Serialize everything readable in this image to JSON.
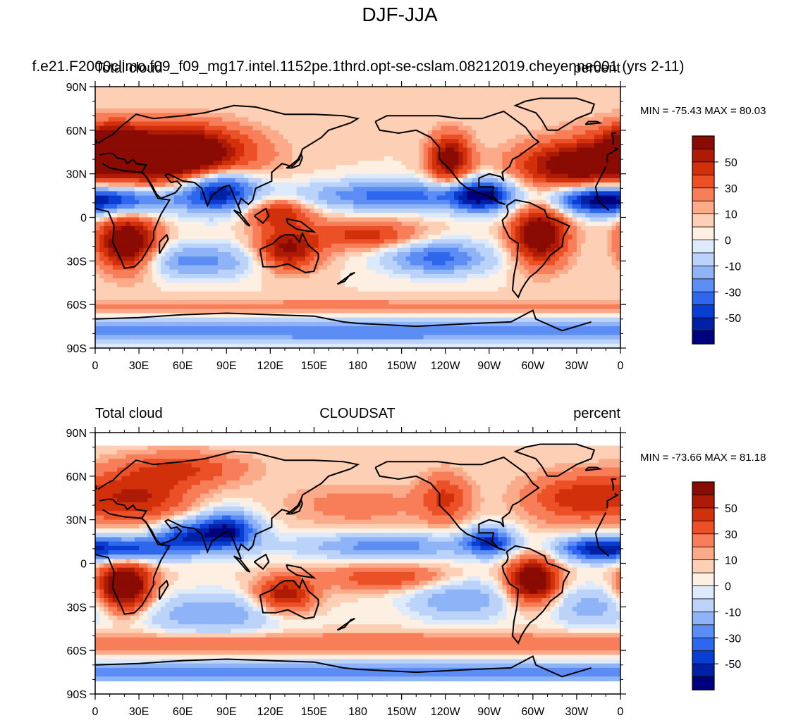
{
  "figure_title": "DJF-JJA",
  "colors": {
    "levels": [
      "#00007f",
      "#0020a6",
      "#0a3dd1",
      "#2f66ee",
      "#5c8df4",
      "#8eb3f7",
      "#bcd3f9",
      "#ddeafb",
      "#fdefe2",
      "#fdd0b5",
      "#fbab8a",
      "#f77e58",
      "#ec5026",
      "#d1300b",
      "#ad1a05",
      "#8a0b03"
    ],
    "ocean_neutral": "#ddeafb",
    "coast": "#000000"
  },
  "chart_data": [
    {
      "type": "heatmap",
      "left_title": "Total cloud",
      "center_title": "f.e21.F2000climo.f09_f09_mg17.intel.1152pe.1thrd.opt-se-cslam.08212019.cheyenne001 (yrs 2-11)",
      "right_title": "percent",
      "stats": "MIN = -75.43 MAX =  80.03",
      "min": -75.43,
      "max": 80.03,
      "x_ticks": [
        "0",
        "30E",
        "60E",
        "90E",
        "120E",
        "150E",
        "180",
        "150W",
        "120W",
        "90W",
        "60W",
        "30W",
        "0"
      ],
      "y_ticks": [
        "90N",
        "60N",
        "30N",
        "0",
        "30S",
        "60S",
        "90S"
      ],
      "xlim": [
        0,
        360
      ],
      "ylim": [
        -90,
        90
      ],
      "colorbar_levels": [
        -70,
        -60,
        -50,
        -40,
        -30,
        -20,
        -10,
        -5,
        0,
        5,
        10,
        20,
        30,
        40,
        50,
        60
      ],
      "colorbar_labels": [
        "50",
        "30",
        "10",
        "0",
        "-10",
        "-30",
        "-50"
      ],
      "data_lat_range": [
        -90,
        90
      ],
      "anomalies": [
        {
          "name": "eurasia-north",
          "lon": 30,
          "lat": 42,
          "value": 60,
          "lon_width": 45,
          "lat_width": 14
        },
        {
          "name": "asia-west",
          "lon": 62,
          "lat": 45,
          "value": 45,
          "lon_width": 28,
          "lat_width": 12
        },
        {
          "name": "south-africa",
          "lon": 22,
          "lat": -18,
          "value": 75,
          "lon_width": 14,
          "lat_width": 13
        },
        {
          "name": "north-america-west",
          "lon": 243,
          "lat": 40,
          "value": 60,
          "lon_width": 10,
          "lat_width": 12
        },
        {
          "name": "north-atlantic",
          "lon": 325,
          "lat": 35,
          "value": 50,
          "lon_width": 25,
          "lat_width": 10
        },
        {
          "name": "brazil",
          "lon": 305,
          "lat": -12,
          "value": 70,
          "lon_width": 13,
          "lat_width": 14
        },
        {
          "name": "australia",
          "lon": 132,
          "lat": -22,
          "value": 55,
          "lon_width": 15,
          "lat_width": 10
        },
        {
          "name": "maritime-continent",
          "lon": 125,
          "lat": 3,
          "value": 40,
          "lon_width": 16,
          "lat_width": 7
        },
        {
          "name": "south-pacific-spcz",
          "lon": 185,
          "lat": -12,
          "value": 35,
          "lon_width": 25,
          "lat_width": 7
        },
        {
          "name": "europe",
          "lon": 10,
          "lat": 50,
          "value": 40,
          "lon_width": 14,
          "lat_width": 10
        },
        {
          "name": "india-bay",
          "lon": 85,
          "lat": 18,
          "value": -70,
          "lon_width": 18,
          "lat_width": 10
        },
        {
          "name": "africa-sahel",
          "lon": 15,
          "lat": 12,
          "value": -55,
          "lon_width": 30,
          "lat_width": 7
        },
        {
          "name": "north-pacific-itcz",
          "lon": 205,
          "lat": 15,
          "value": -45,
          "lon_width": 45,
          "lat_width": 7
        },
        {
          "name": "central-america",
          "lon": 265,
          "lat": 15,
          "value": -65,
          "lon_width": 15,
          "lat_width": 8
        },
        {
          "name": "atlantic-itcz",
          "lon": 340,
          "lat": 12,
          "value": -50,
          "lon_width": 20,
          "lat_width": 7
        },
        {
          "name": "south-east-pacific",
          "lon": 235,
          "lat": -28,
          "value": -45,
          "lon_width": 25,
          "lat_width": 8
        },
        {
          "name": "south-indian-ocean",
          "lon": 70,
          "lat": -30,
          "value": -35,
          "lon_width": 30,
          "lat_width": 8
        },
        {
          "name": "antarctic-ring",
          "lon": 180,
          "lat": -78,
          "value": -40,
          "lon_width": 400,
          "lat_width": 6
        },
        {
          "name": "southern-ocean",
          "lon": 180,
          "lat": -62,
          "value": 15,
          "lon_width": 400,
          "lat_width": 4
        }
      ]
    },
    {
      "type": "heatmap",
      "left_title": "Total cloud",
      "center_title": "CLOUDSAT",
      "right_title": "percent",
      "stats": "MIN = -73.66 MAX =  81.18",
      "min": -73.66,
      "max": 81.18,
      "x_ticks": [
        "0",
        "30E",
        "60E",
        "90E",
        "120E",
        "150E",
        "180",
        "150W",
        "120W",
        "90W",
        "60W",
        "30W",
        "0"
      ],
      "y_ticks": [
        "90N",
        "60N",
        "30N",
        "0",
        "30S",
        "60S",
        "90S"
      ],
      "xlim": [
        0,
        360
      ],
      "ylim": [
        -90,
        90
      ],
      "colorbar_levels": [
        -70,
        -60,
        -50,
        -40,
        -30,
        -20,
        -10,
        -5,
        0,
        5,
        10,
        20,
        30,
        40,
        50,
        60
      ],
      "colorbar_labels": [
        "50",
        "30",
        "10",
        "0",
        "-10",
        "-30",
        "-50"
      ],
      "data_lat_range": [
        -82,
        82
      ],
      "anomalies": [
        {
          "name": "south-africa",
          "lon": 20,
          "lat": -16,
          "value": 78,
          "lon_width": 13,
          "lat_width": 12
        },
        {
          "name": "brazil",
          "lon": 300,
          "lat": -12,
          "value": 72,
          "lon_width": 12,
          "lat_width": 11
        },
        {
          "name": "australia",
          "lon": 130,
          "lat": -22,
          "value": 50,
          "lon_width": 14,
          "lat_width": 9
        },
        {
          "name": "europe",
          "lon": 30,
          "lat": 45,
          "value": 40,
          "lon_width": 25,
          "lat_width": 12
        },
        {
          "name": "siberia",
          "lon": 60,
          "lat": 65,
          "value": 30,
          "lon_width": 30,
          "lat_width": 8
        },
        {
          "name": "north-atlantic",
          "lon": 330,
          "lat": 45,
          "value": 35,
          "lon_width": 25,
          "lat_width": 12
        },
        {
          "name": "north-america-west",
          "lon": 240,
          "lat": 45,
          "value": 30,
          "lon_width": 12,
          "lat_width": 12
        },
        {
          "name": "spcz",
          "lon": 200,
          "lat": -10,
          "value": 30,
          "lon_width": 30,
          "lat_width": 6
        },
        {
          "name": "north-pacific",
          "lon": 180,
          "lat": 40,
          "value": 15,
          "lon_width": 35,
          "lat_width": 10
        },
        {
          "name": "southern-ocean",
          "lon": 180,
          "lat": -55,
          "value": 20,
          "lon_width": 400,
          "lat_width": 5
        },
        {
          "name": "india-bay",
          "lon": 90,
          "lat": 22,
          "value": -72,
          "lon_width": 15,
          "lat_width": 9
        },
        {
          "name": "africa-sahel",
          "lon": 20,
          "lat": 10,
          "value": -55,
          "lon_width": 25,
          "lat_width": 6
        },
        {
          "name": "arabian-sea",
          "lon": 60,
          "lat": 18,
          "value": -45,
          "lon_width": 15,
          "lat_width": 8
        },
        {
          "name": "pacific-itcz",
          "lon": 200,
          "lat": 12,
          "value": -35,
          "lon_width": 45,
          "lat_width": 6
        },
        {
          "name": "central-america",
          "lon": 270,
          "lat": 15,
          "value": -55,
          "lon_width": 12,
          "lat_width": 7
        },
        {
          "name": "atlantic-itcz",
          "lon": 340,
          "lat": 10,
          "value": -50,
          "lon_width": 18,
          "lat_width": 6
        },
        {
          "name": "south-atlantic",
          "lon": 340,
          "lat": -30,
          "value": -25,
          "lon_width": 20,
          "lat_width": 10
        },
        {
          "name": "south-east-pacific",
          "lon": 250,
          "lat": -25,
          "value": -30,
          "lon_width": 25,
          "lat_width": 10
        },
        {
          "name": "indian-ocean-south",
          "lon": 80,
          "lat": -35,
          "value": -30,
          "lon_width": 35,
          "lat_width": 10
        },
        {
          "name": "antarctic",
          "lon": 180,
          "lat": -75,
          "value": -35,
          "lon_width": 400,
          "lat_width": 5
        }
      ]
    }
  ]
}
